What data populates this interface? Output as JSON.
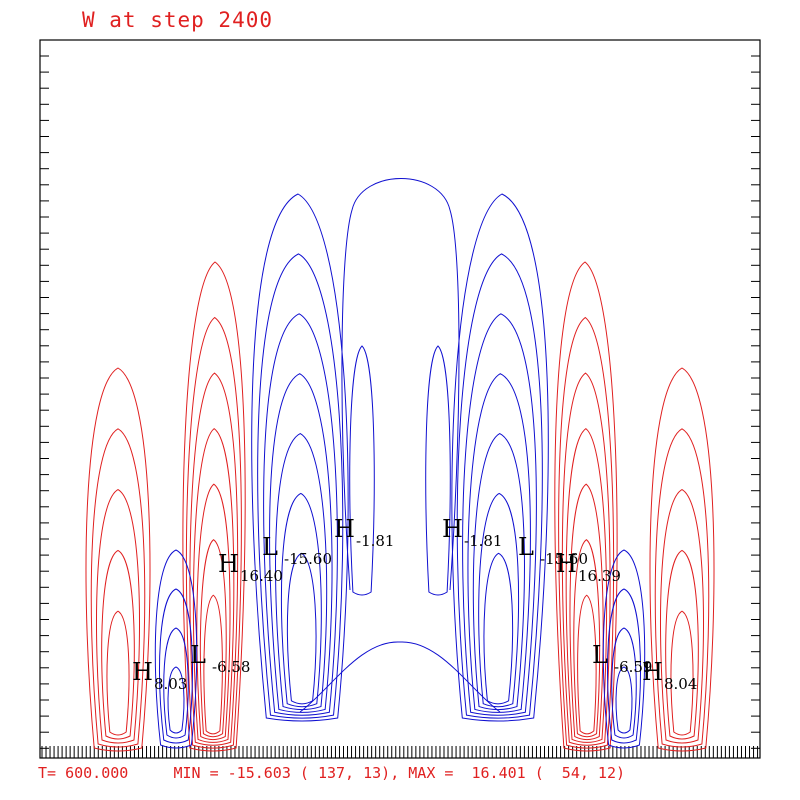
{
  "title": "W at step 2400",
  "footer": {
    "time_text": "T= 600.000",
    "min_text": "MIN = -15.603 ( 137, 13), MAX =  16.401 (  54, 12)"
  },
  "colors": {
    "positive": "#e02020",
    "negative": "#1010d0",
    "frame": "#000000"
  },
  "chart_data": {
    "type": "contour",
    "title": "W at step 2400",
    "time": 600.0,
    "min": {
      "value": -15.603,
      "i": 137,
      "j": 13
    },
    "max": {
      "value": 16.401,
      "i": 54,
      "j": 12
    },
    "extrema_labels": [
      {
        "kind": "H",
        "value": "8.03"
      },
      {
        "kind": "L",
        "value": "-6.58"
      },
      {
        "kind": "H",
        "value": "16.40"
      },
      {
        "kind": "L",
        "value": "-15.60"
      },
      {
        "kind": "H",
        "value": "-1.81"
      },
      {
        "kind": "H",
        "value": "-1.81"
      },
      {
        "kind": "L",
        "value": "-15.60"
      },
      {
        "kind": "H",
        "value": "16.39"
      },
      {
        "kind": "L",
        "value": "-6.59"
      },
      {
        "kind": "H",
        "value": "8.04"
      }
    ]
  }
}
